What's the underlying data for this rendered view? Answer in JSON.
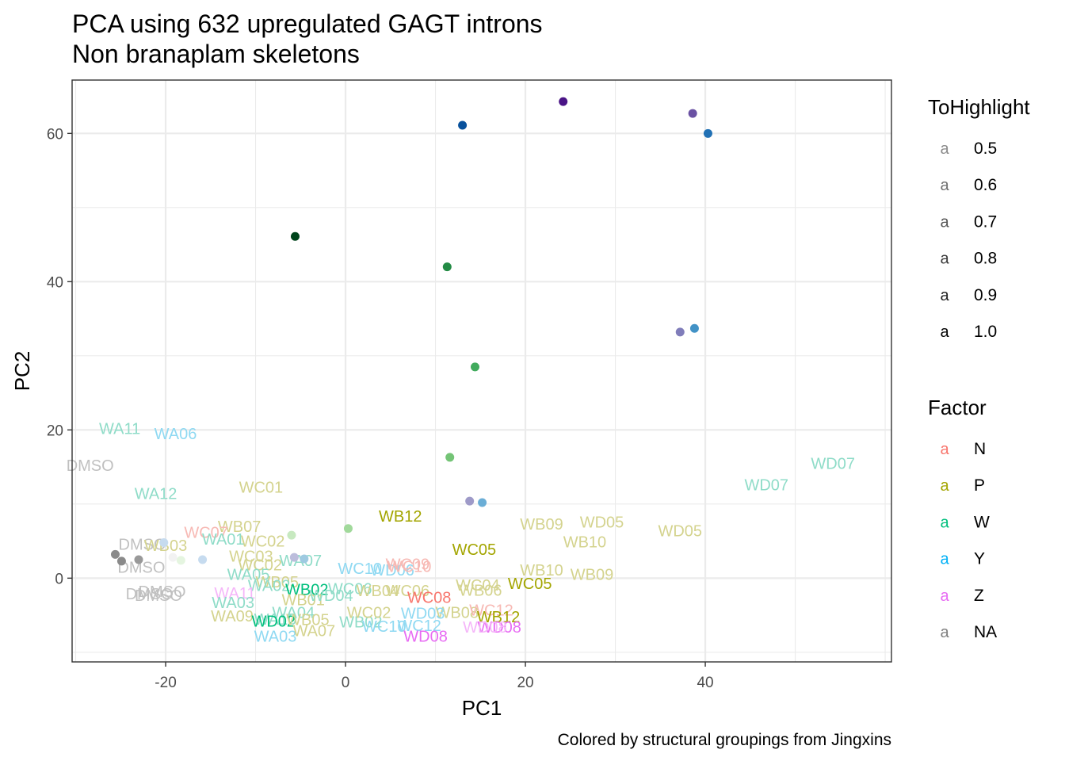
{
  "chart_data": {
    "type": "scatter",
    "title": "PCA using 632 upregulated GAGT introns",
    "subtitle": "Non branaplam skeletons",
    "caption": "Colored by structural groupings from Jingxins",
    "xlabel": "PC1",
    "ylabel": "PC2",
    "xlim": [
      -30.4,
      60.7
    ],
    "ylim": [
      -11.3,
      67.2
    ],
    "xticks": [
      -20,
      0,
      20,
      40
    ],
    "yticks": [
      0,
      20,
      40,
      60
    ],
    "grid": true,
    "legends": [
      {
        "title": "ToHighlight",
        "entries": [
          {
            "glyph": "a",
            "label": "0.5",
            "color": "#8a8a8a"
          },
          {
            "glyph": "a",
            "label": "0.6",
            "color": "#6e6e6e"
          },
          {
            "glyph": "a",
            "label": "0.7",
            "color": "#555555"
          },
          {
            "glyph": "a",
            "label": "0.8",
            "color": "#3a3a3a"
          },
          {
            "glyph": "a",
            "label": "0.9",
            "color": "#1f1f1f"
          },
          {
            "glyph": "a",
            "label": "1.0",
            "color": "#000000"
          }
        ]
      },
      {
        "title": "Factor",
        "entries": [
          {
            "glyph": "a",
            "label": "N",
            "color": "#F8766D"
          },
          {
            "glyph": "a",
            "label": "P",
            "color": "#A3A500"
          },
          {
            "glyph": "a",
            "label": "W",
            "color": "#00BF7D"
          },
          {
            "glyph": "a",
            "label": "Y",
            "color": "#00B0F6"
          },
          {
            "glyph": "a",
            "label": "Z",
            "color": "#E76BF3"
          },
          {
            "glyph": "a",
            "label": "NA",
            "color": "#7F7F7F"
          }
        ]
      }
    ],
    "points": [
      {
        "x": 24.2,
        "y": 64.3,
        "color": "#4a1486"
      },
      {
        "x": 38.6,
        "y": 62.7,
        "color": "#6a51a3"
      },
      {
        "x": 40.3,
        "y": 60.0,
        "color": "#2171b5"
      },
      {
        "x": 13.0,
        "y": 61.1,
        "color": "#08519c"
      },
      {
        "x": -5.6,
        "y": 46.1,
        "color": "#00441b"
      },
      {
        "x": 11.3,
        "y": 42.0,
        "color": "#238b45"
      },
      {
        "x": 37.2,
        "y": 33.2,
        "color": "#807dba"
      },
      {
        "x": 38.8,
        "y": 33.7,
        "color": "#4292c6"
      },
      {
        "x": 14.4,
        "y": 28.5,
        "color": "#41ab5d"
      },
      {
        "x": 11.6,
        "y": 16.3,
        "color": "#74c476"
      },
      {
        "x": 13.8,
        "y": 10.4,
        "color": "#9e9ac8"
      },
      {
        "x": 15.2,
        "y": 10.2,
        "color": "#6baed6"
      },
      {
        "x": 0.3,
        "y": 6.7,
        "color": "#a1d99b"
      },
      {
        "x": -6.0,
        "y": 5.8,
        "color": "#c7e9c0"
      },
      {
        "x": -25.6,
        "y": 3.2,
        "color": "#8a8a8a"
      },
      {
        "x": -24.9,
        "y": 2.3,
        "color": "#8a8a8a"
      },
      {
        "x": -23.0,
        "y": 2.5,
        "color": "#999999"
      },
      {
        "x": -20.2,
        "y": 4.8,
        "color": "#c6dbef"
      },
      {
        "x": -19.2,
        "y": 2.8,
        "color": "#f2f2f2"
      },
      {
        "x": -18.3,
        "y": 2.4,
        "color": "#e5f5e0"
      },
      {
        "x": -15.9,
        "y": 2.5,
        "color": "#c6dbef"
      },
      {
        "x": -5.7,
        "y": 2.8,
        "color": "#bcbddc"
      },
      {
        "x": -4.6,
        "y": 2.6,
        "color": "#9ecae1"
      }
    ],
    "labels": [
      {
        "text": "WD07",
        "x": 54.2,
        "y": 15.5,
        "color": "#8fdcc8"
      },
      {
        "text": "WD07",
        "x": 46.8,
        "y": 12.6,
        "color": "#8fdcc8"
      },
      {
        "text": "WA11",
        "x": -25.1,
        "y": 20.2,
        "color": "#8fdcc8"
      },
      {
        "text": "WA06",
        "x": -18.9,
        "y": 19.5,
        "color": "#8fd9f2"
      },
      {
        "text": "DMSO",
        "x": -28.4,
        "y": 15.2,
        "color": "#c0c0c0"
      },
      {
        "text": "WA12",
        "x": -21.1,
        "y": 11.4,
        "color": "#8fdcc8"
      },
      {
        "text": "WC01",
        "x": -9.4,
        "y": 12.3,
        "color": "#d4d38e"
      },
      {
        "text": "WB12",
        "x": 6.1,
        "y": 8.4,
        "color": "#a3a500"
      },
      {
        "text": "WB09",
        "x": 21.8,
        "y": 7.3,
        "color": "#d4d38e"
      },
      {
        "text": "WD05",
        "x": 28.5,
        "y": 7.6,
        "color": "#d4d38e"
      },
      {
        "text": "WD05",
        "x": 37.2,
        "y": 6.4,
        "color": "#d4d38e"
      },
      {
        "text": "WB10",
        "x": 26.6,
        "y": 4.9,
        "color": "#d4d38e"
      },
      {
        "text": "WC05",
        "x": 14.3,
        "y": 3.9,
        "color": "#a3a500"
      },
      {
        "text": "WB10",
        "x": 21.8,
        "y": 1.1,
        "color": "#d4d38e"
      },
      {
        "text": "WB09",
        "x": 27.4,
        "y": 0.5,
        "color": "#d4d38e"
      },
      {
        "text": "WC05",
        "x": 20.5,
        "y": -0.7,
        "color": "#a3a500"
      },
      {
        "text": "WC04",
        "x": 14.7,
        "y": -0.9,
        "color": "#d4d38e"
      },
      {
        "text": "WB06",
        "x": 15.0,
        "y": -1.6,
        "color": "#d4d38e"
      },
      {
        "text": "WB07",
        "x": -11.8,
        "y": 7.0,
        "color": "#d4d38e"
      },
      {
        "text": "WC07",
        "x": -15.5,
        "y": 6.2,
        "color": "#f7b9b4"
      },
      {
        "text": "WC02",
        "x": -9.2,
        "y": 5.0,
        "color": "#d4d38e"
      },
      {
        "text": "WA01",
        "x": -13.6,
        "y": 5.3,
        "color": "#8fdcc8"
      },
      {
        "text": "DMSO",
        "x": -22.6,
        "y": 4.6,
        "color": "#c0c0c0"
      },
      {
        "text": "WB03",
        "x": -20.0,
        "y": 4.4,
        "color": "#d4d38e"
      },
      {
        "text": "WC03",
        "x": -10.5,
        "y": 3.0,
        "color": "#d4d38e"
      },
      {
        "text": "WA07",
        "x": -5.0,
        "y": 2.4,
        "color": "#8fdcc8"
      },
      {
        "text": "WC02",
        "x": -9.5,
        "y": 1.8,
        "color": "#d4d38e"
      },
      {
        "text": "DMSO",
        "x": -22.7,
        "y": 1.5,
        "color": "#c0c0c0"
      },
      {
        "text": "WC10",
        "x": 1.6,
        "y": 1.3,
        "color": "#8fd9f2"
      },
      {
        "text": "WD06",
        "x": 5.2,
        "y": 1.1,
        "color": "#8fd9f2"
      },
      {
        "text": "WC09",
        "x": 6.9,
        "y": 1.9,
        "color": "#f7b9b4"
      },
      {
        "text": "WC10",
        "x": 7.1,
        "y": 1.6,
        "color": "#f7b9b4"
      },
      {
        "text": "WA05",
        "x": -10.8,
        "y": 0.5,
        "color": "#8fdcc8"
      },
      {
        "text": "WB05",
        "x": -7.6,
        "y": -0.5,
        "color": "#d4d38e"
      },
      {
        "text": "WA02",
        "x": -8.5,
        "y": -1.0,
        "color": "#8fdcc8"
      },
      {
        "text": "WB02",
        "x": -4.3,
        "y": -1.5,
        "color": "#00bf7d"
      },
      {
        "text": "WC06",
        "x": 0.5,
        "y": -1.4,
        "color": "#8fdcc8"
      },
      {
        "text": "WB04",
        "x": 3.6,
        "y": -1.7,
        "color": "#d4d38e"
      },
      {
        "text": "WC06",
        "x": 6.9,
        "y": -1.7,
        "color": "#d4d38e"
      },
      {
        "text": "WC08",
        "x": 9.3,
        "y": -2.6,
        "color": "#f8766d"
      },
      {
        "text": "DMSO",
        "x": -20.4,
        "y": -1.8,
        "color": "#c0c0c0"
      },
      {
        "text": "DMSO",
        "x": -21.8,
        "y": -2.1,
        "color": "#c0c0c0"
      },
      {
        "text": "DMSO",
        "x": -20.8,
        "y": -2.3,
        "color": "#c0c0c0"
      },
      {
        "text": "WA11",
        "x": -12.3,
        "y": -2.0,
        "color": "#f5b6f9"
      },
      {
        "text": "WA03",
        "x": -12.5,
        "y": -3.3,
        "color": "#8fdcc8"
      },
      {
        "text": "WB01",
        "x": -4.7,
        "y": -2.9,
        "color": "#d4d38e"
      },
      {
        "text": "WD04",
        "x": -1.6,
        "y": -2.3,
        "color": "#8fdcc8"
      },
      {
        "text": "WB08",
        "x": 12.4,
        "y": -4.6,
        "color": "#d4d38e"
      },
      {
        "text": "WC12",
        "x": 16.2,
        "y": -4.3,
        "color": "#f7b9b4"
      },
      {
        "text": "WB12",
        "x": 17.0,
        "y": -5.2,
        "color": "#a3a500"
      },
      {
        "text": "WA09",
        "x": -12.6,
        "y": -5.1,
        "color": "#d4d38e"
      },
      {
        "text": "WA04",
        "x": -5.8,
        "y": -4.6,
        "color": "#8fdcc8"
      },
      {
        "text": "WA10",
        "x": -7.8,
        "y": -5.5,
        "color": "#8fdcc8"
      },
      {
        "text": "WD02",
        "x": -8.0,
        "y": -5.8,
        "color": "#00bf7d"
      },
      {
        "text": "WB05",
        "x": -4.2,
        "y": -5.6,
        "color": "#d4d38e"
      },
      {
        "text": "WB02",
        "x": 1.7,
        "y": -5.9,
        "color": "#8fdcc8"
      },
      {
        "text": "WC02",
        "x": 2.6,
        "y": -4.6,
        "color": "#d4d38e"
      },
      {
        "text": "WD03",
        "x": 8.6,
        "y": -4.7,
        "color": "#8fd9f2"
      },
      {
        "text": "WC12",
        "x": 8.2,
        "y": -6.4,
        "color": "#8fd9f2"
      },
      {
        "text": "WC10",
        "x": 4.3,
        "y": -6.5,
        "color": "#8fd9f2"
      },
      {
        "text": "WD08",
        "x": 17.1,
        "y": -6.6,
        "color": "#e76bf3"
      },
      {
        "text": "WD08",
        "x": 15.5,
        "y": -6.6,
        "color": "#f5b6f9"
      },
      {
        "text": "WA03",
        "x": -7.8,
        "y": -7.8,
        "color": "#8fd9f2"
      },
      {
        "text": "WA07",
        "x": -3.5,
        "y": -7.1,
        "color": "#d4d38e"
      },
      {
        "text": "WD08",
        "x": 8.9,
        "y": -7.8,
        "color": "#e76bf3"
      }
    ]
  }
}
